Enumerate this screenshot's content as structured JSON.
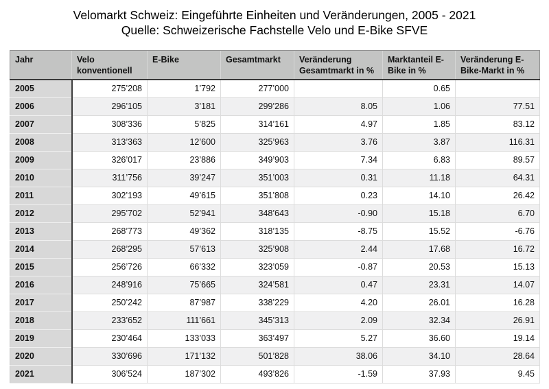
{
  "chart_data": {
    "type": "table",
    "title": "Velomarkt Schweiz: Eingeführte Einheiten und Veränderungen, 2005 - 2021",
    "subtitle": "Quelle: Schweizerische Fachstelle Velo und E-Bike SFVE",
    "columns": [
      "Jahr",
      "Velo konventionell",
      "E-Bike",
      "Gesamtmarkt",
      "Veränderung Gesamtmarkt in %",
      "Marktanteil E-Bike in %",
      "Veränderung E-Bike-Markt in %"
    ],
    "rows": [
      [
        "2005",
        "275’208",
        "1’792",
        "277’000",
        "",
        "0.65",
        ""
      ],
      [
        "2006",
        "296’105",
        "3’181",
        "299’286",
        "8.05",
        "1.06",
        "77.51"
      ],
      [
        "2007",
        "308’336",
        "5’825",
        "314’161",
        "4.97",
        "1.85",
        "83.12"
      ],
      [
        "2008",
        "313’363",
        "12’600",
        "325’963",
        "3.76",
        "3.87",
        "116.31"
      ],
      [
        "2009",
        "326’017",
        "23’886",
        "349’903",
        "7.34",
        "6.83",
        "89.57"
      ],
      [
        "2010",
        "311’756",
        "39’247",
        "351’003",
        "0.31",
        "11.18",
        "64.31"
      ],
      [
        "2011",
        "302’193",
        "49’615",
        "351’808",
        "0.23",
        "14.10",
        "26.42"
      ],
      [
        "2012",
        "295’702",
        "52’941",
        "348’643",
        "-0.90",
        "15.18",
        "6.70"
      ],
      [
        "2013",
        "268’773",
        "49’362",
        "318’135",
        "-8.75",
        "15.52",
        "-6.76"
      ],
      [
        "2014",
        "268’295",
        "57’613",
        "325’908",
        "2.44",
        "17.68",
        "16.72"
      ],
      [
        "2015",
        "256’726",
        "66’332",
        "323’059",
        "-0.87",
        "20.53",
        "15.13"
      ],
      [
        "2016",
        "248’916",
        "75’665",
        "324’581",
        "0.47",
        "23.31",
        "14.07"
      ],
      [
        "2017",
        "250’242",
        "87’987",
        "338’229",
        "4.20",
        "26.01",
        "16.28"
      ],
      [
        "2018",
        "233’652",
        "111’661",
        "345’313",
        "2.09",
        "32.34",
        "26.91"
      ],
      [
        "2019",
        "230’464",
        "133’033",
        "363’497",
        "5.27",
        "36.60",
        "19.14"
      ],
      [
        "2020",
        "330’696",
        "171’132",
        "501’828",
        "38.06",
        "34.10",
        "28.64"
      ],
      [
        "2021",
        "306’524",
        "187’302",
        "493’826",
        "-1.59",
        "37.93",
        "9.45"
      ]
    ],
    "layout": {
      "header_bg": "#c3c4c3",
      "year_column_bg": "#d8d8d8",
      "row_alt_bg": "#f0f0f1",
      "grid_line": "#dcdcdc",
      "header_bottom_border": "#3a3a3a"
    }
  }
}
